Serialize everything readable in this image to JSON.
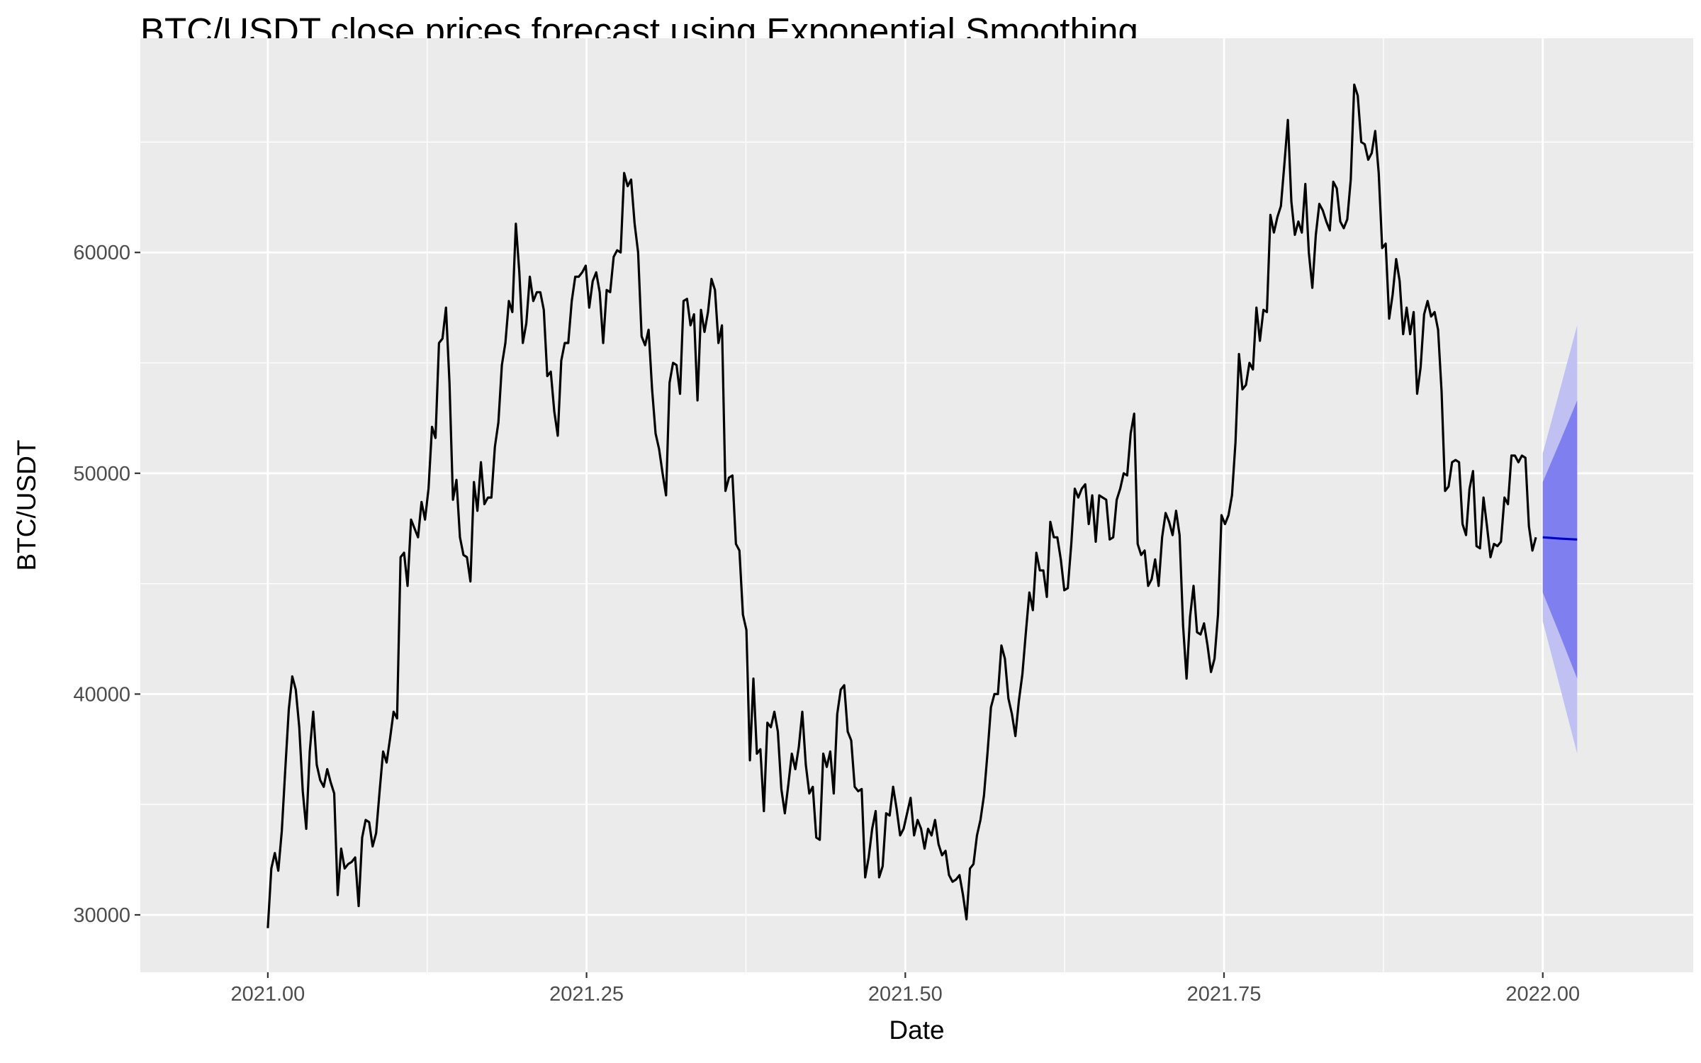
{
  "chart_data": {
    "type": "line",
    "title": "BTC/USDT close prices forecast using Exponential Smoothing",
    "xlabel": "Date",
    "ylabel": "BTC/USDT",
    "xlim": [
      2020.9,
      2022.118
    ],
    "ylim": [
      27400,
      69700
    ],
    "x_ticks": [
      2021.0,
      2021.25,
      2021.5,
      2021.75,
      2022.0
    ],
    "x_tick_labels": [
      "2021.00",
      "2021.25",
      "2021.50",
      "2021.75",
      "2022.00"
    ],
    "y_ticks": [
      30000,
      40000,
      50000,
      60000
    ],
    "y_tick_labels": [
      "30000",
      "40000",
      "50000",
      "60000"
    ],
    "grid": true,
    "legend": "none",
    "colors": {
      "panel_background": "#ebebeb",
      "grid": "#ffffff",
      "series": "#000000",
      "forecast": "#0000cc",
      "band_80": "#7f7ff0",
      "band_95": "#c0c0f2"
    },
    "series": [
      {
        "role": "observed",
        "x_start": 2021.0,
        "x_step": 0.00274,
        "values": [
          29400,
          32100,
          32800,
          32000,
          33800,
          36600,
          39300,
          40800,
          40200,
          38500,
          35600,
          33900,
          37400,
          39200,
          36800,
          36100,
          35800,
          36600,
          36000,
          35500,
          30900,
          33000,
          32100,
          32300,
          32400,
          32600,
          30400,
          33500,
          34300,
          34200,
          33100,
          33700,
          35600,
          37400,
          36900,
          38000,
          39200,
          38900,
          46200,
          46400,
          44900,
          47900,
          47500,
          47100,
          48700,
          47900,
          49300,
          52100,
          51600,
          55900,
          56100,
          57500,
          54100,
          48800,
          49700,
          47100,
          46300,
          46200,
          45100,
          49600,
          48300,
          50500,
          48600,
          48900,
          48900,
          51200,
          52300,
          54900,
          55900,
          57800,
          57300,
          61300,
          59100,
          55900,
          56800,
          58900,
          57800,
          58200,
          58200,
          57400,
          54400,
          54600,
          52800,
          51700,
          55100,
          55900,
          55900,
          57800,
          58900,
          58900,
          59100,
          59400,
          57500,
          58700,
          59100,
          58200,
          55900,
          58300,
          58200,
          59800,
          60100,
          60000,
          63600,
          63000,
          63300,
          61300,
          60000,
          56200,
          55800,
          56500,
          53800,
          51800,
          51100,
          50000,
          49000,
          54100,
          55000,
          54900,
          53600,
          57800,
          57900,
          56700,
          57200,
          53300,
          57400,
          56400,
          57300,
          58800,
          58300,
          55900,
          56700,
          49200,
          49800,
          49900,
          46800,
          46500,
          43600,
          42900,
          37000,
          40700,
          37300,
          37500,
          34700,
          38700,
          38500,
          39200,
          38300,
          35700,
          34600,
          35900,
          37300,
          36600,
          37600,
          39200,
          36800,
          35500,
          35800,
          33500,
          33400,
          37300,
          36700,
          37400,
          35500,
          39100,
          40200,
          40400,
          38300,
          37900,
          35800,
          35600,
          35700,
          31700,
          32600,
          33900,
          34700,
          31700,
          32200,
          34600,
          34500,
          35800,
          34800,
          33600,
          33900,
          34600,
          35300,
          33600,
          34300,
          33900,
          33000,
          33900,
          33600,
          34300,
          33200,
          32700,
          32900,
          31800,
          31500,
          31600,
          31800,
          30900,
          29800,
          32100,
          32300,
          33600,
          34300,
          35400,
          37300,
          39400,
          40000,
          40000,
          42200,
          41600,
          39800,
          39100,
          38100,
          39700,
          40900,
          42800,
          44600,
          43800,
          46400,
          45600,
          45600,
          44400,
          47800,
          47100,
          47100,
          46100,
          44700,
          44800,
          46800,
          49300,
          48900,
          49300,
          49500,
          47700,
          49000,
          46900,
          49000,
          48900,
          48800,
          47000,
          47100,
          48800,
          49300,
          50000,
          49900,
          51800,
          52700,
          46800,
          46300,
          46500,
          44900,
          45200,
          46100,
          44900,
          47100,
          48200,
          47800,
          47200,
          48300,
          47200,
          43100,
          40700,
          43500,
          44900,
          42800,
          42700,
          43200,
          42200,
          41000,
          41600,
          43600,
          48100,
          47700,
          48100,
          49000,
          51400,
          55400,
          53800,
          54000,
          55000,
          54700,
          57500,
          56000,
          57400,
          57300,
          61700,
          60900,
          61600,
          62100,
          64000,
          66000,
          62300,
          60800,
          61400,
          60900,
          63100,
          60000,
          58400,
          60800,
          62200,
          61900,
          61400,
          61000,
          63200,
          62900,
          61400,
          61100,
          61500,
          63300,
          67600,
          67100,
          65000,
          64900,
          64200,
          64500,
          65500,
          63600,
          60200,
          60400,
          57000,
          58100,
          59700,
          58700,
          56300,
          57500,
          56300,
          57300,
          53600,
          54800,
          57200,
          57800,
          57100,
          57300,
          56500,
          53700,
          49200,
          49400,
          50500,
          50600,
          50500,
          47700,
          47200,
          49300,
          50100,
          46700,
          46600,
          48900,
          47600,
          46200,
          46800,
          46700,
          46900,
          48900,
          48600,
          50800,
          50800,
          50500,
          50800,
          50700,
          47600,
          46500,
          47100
        ]
      },
      {
        "role": "forecast",
        "x": [
          2022.0,
          2022.014,
          2022.027
        ],
        "values": [
          47100,
          47040,
          47000
        ],
        "pi80_lower": [
          44600,
          42600,
          40700
        ],
        "pi80_upper": [
          49600,
          51500,
          53300
        ],
        "pi95_lower": [
          43300,
          40200,
          37300
        ],
        "pi95_upper": [
          50900,
          53900,
          56700
        ]
      }
    ]
  }
}
